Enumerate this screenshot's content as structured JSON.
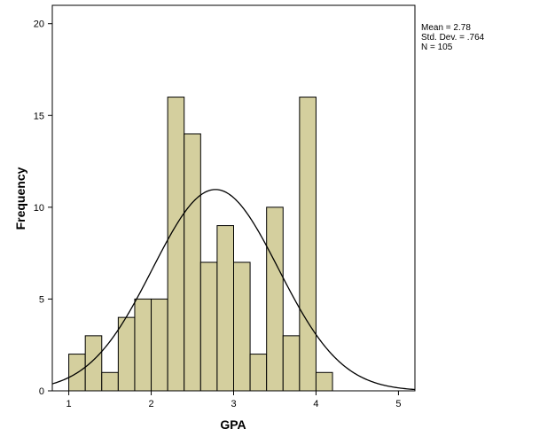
{
  "chart_data": {
    "type": "bar",
    "title": "",
    "xlabel": "GPA",
    "ylabel": "Frequency",
    "xlim": [
      0.8,
      5.2
    ],
    "ylim": [
      0,
      21
    ],
    "xticks": [
      1,
      2,
      3,
      4,
      5
    ],
    "yticks": [
      0,
      5,
      10,
      15,
      20
    ],
    "bin_width": 0.2,
    "bins": [
      {
        "start": 1.0,
        "end": 1.2,
        "count": 2
      },
      {
        "start": 1.2,
        "end": 1.4,
        "count": 3
      },
      {
        "start": 1.4,
        "end": 1.6,
        "count": 1
      },
      {
        "start": 1.6,
        "end": 1.8,
        "count": 4
      },
      {
        "start": 1.8,
        "end": 2.0,
        "count": 5
      },
      {
        "start": 2.0,
        "end": 2.2,
        "count": 5
      },
      {
        "start": 2.2,
        "end": 2.4,
        "count": 16
      },
      {
        "start": 2.4,
        "end": 2.6,
        "count": 14
      },
      {
        "start": 2.6,
        "end": 2.8,
        "count": 7
      },
      {
        "start": 2.8,
        "end": 3.0,
        "count": 9
      },
      {
        "start": 3.0,
        "end": 3.2,
        "count": 7
      },
      {
        "start": 3.2,
        "end": 3.4,
        "count": 2
      },
      {
        "start": 3.4,
        "end": 3.6,
        "count": 10
      },
      {
        "start": 3.6,
        "end": 3.8,
        "count": 3
      },
      {
        "start": 3.8,
        "end": 4.0,
        "count": 16
      },
      {
        "start": 4.0,
        "end": 4.2,
        "count": 1
      }
    ],
    "normal_curve": {
      "mean": 2.78,
      "sd": 0.764,
      "n": 105
    },
    "grid": false,
    "colors": {
      "bar_fill": "#d4cf9e",
      "bar_stroke": "#000000",
      "curve": "#000000"
    },
    "stats": {
      "mean_label": "Mean = 2.78",
      "sd_label": "Std. Dev. = .764",
      "n_label": "N = 105"
    },
    "legend_placement": "top-right"
  }
}
